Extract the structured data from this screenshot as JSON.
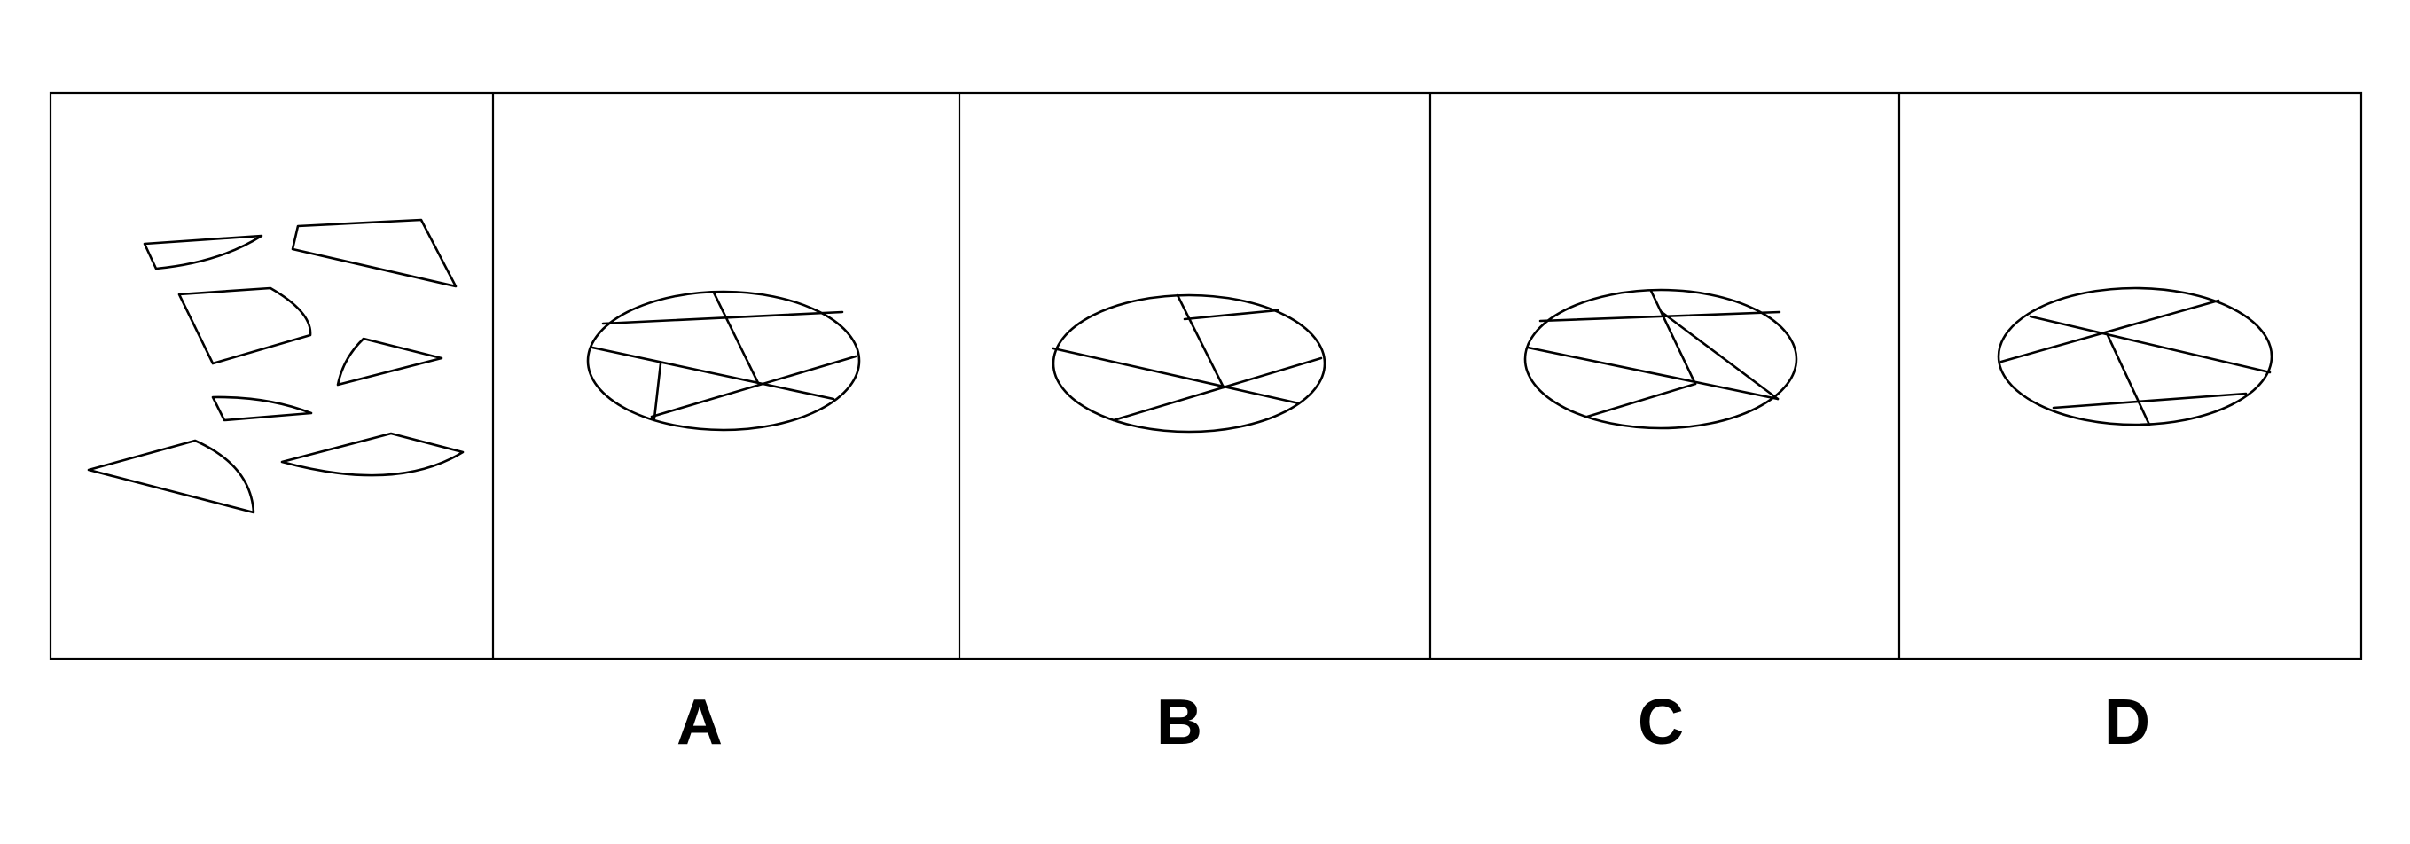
{
  "puzzle": {
    "description_panel": "question",
    "options": [
      {
        "key": "a",
        "label": "A"
      },
      {
        "key": "b",
        "label": "B"
      },
      {
        "key": "c",
        "label": "C"
      },
      {
        "key": "d",
        "label": "D"
      }
    ]
  },
  "colors": {
    "line": "#000000",
    "background": "#ffffff"
  }
}
